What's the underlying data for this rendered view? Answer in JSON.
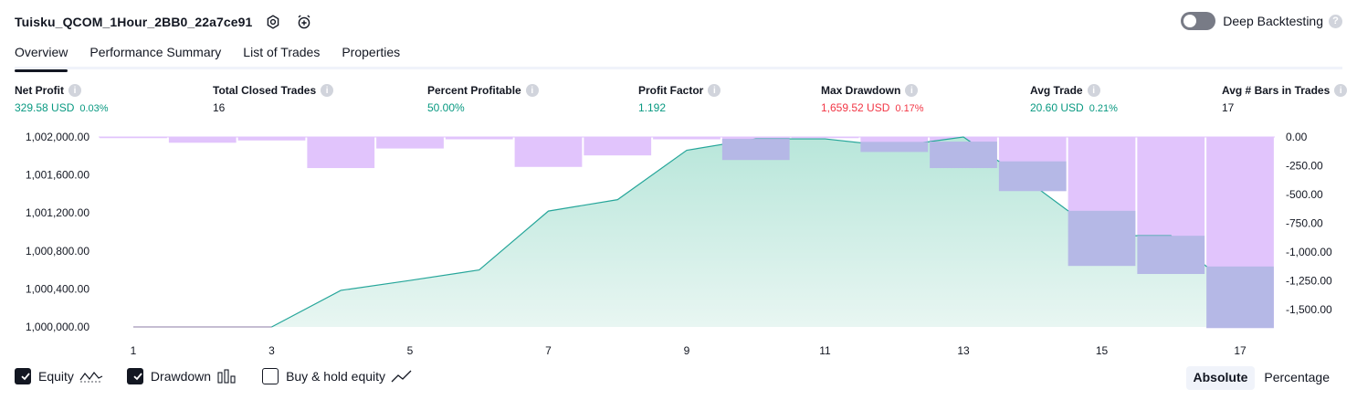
{
  "header": {
    "strategy_name": "Tuisku_QCOM_1Hour_2BB0_22a7ce91",
    "deep_backtesting_label": "Deep Backtesting",
    "deep_backtesting_enabled": false
  },
  "tabs": [
    {
      "label": "Overview",
      "active": true
    },
    {
      "label": "Performance Summary",
      "active": false
    },
    {
      "label": "List of Trades",
      "active": false
    },
    {
      "label": "Properties",
      "active": false
    }
  ],
  "metrics": [
    {
      "label": "Net Profit",
      "value": "329.58 USD",
      "pct": "0.03%",
      "tone": "pos"
    },
    {
      "label": "Total Closed Trades",
      "value": "16",
      "pct": "",
      "tone": "neu"
    },
    {
      "label": "Percent Profitable",
      "value": "50.00%",
      "pct": "",
      "tone": "pos"
    },
    {
      "label": "Profit Factor",
      "value": "1.192",
      "pct": "",
      "tone": "pos"
    },
    {
      "label": "Max Drawdown",
      "value": "1,659.52 USD",
      "pct": "0.17%",
      "tone": "neg"
    },
    {
      "label": "Avg Trade",
      "value": "20.60 USD",
      "pct": "0.21%",
      "tone": "pos"
    },
    {
      "label": "Avg # Bars in Trades",
      "value": "17",
      "pct": "",
      "tone": "neu"
    }
  ],
  "chart_data": {
    "type": "line",
    "x_ticks": [
      "1",
      "3",
      "5",
      "7",
      "9",
      "11",
      "13",
      "15",
      "17"
    ],
    "y_left_ticks": [
      "1,002,000.00",
      "1,001,600.00",
      "1,001,200.00",
      "1,000,800.00",
      "1,000,400.00",
      "1,000,000.00"
    ],
    "y_right_ticks": [
      "0.00",
      "-250.00",
      "-500.00",
      "-750.00",
      "-1,000.00",
      "-1,250.00",
      "-1,500.00"
    ],
    "ylim_left": [
      1000000,
      1002000
    ],
    "ylim_right": [
      -1650,
      0
    ],
    "xlim": [
      1,
      17
    ],
    "series": [
      {
        "name": "Equity",
        "type": "area",
        "axis": "left",
        "x": [
          1,
          2,
          3,
          4,
          5,
          6,
          7,
          8,
          9,
          10,
          11,
          12,
          13,
          14,
          15,
          16,
          17
        ],
        "values": [
          1000000,
          1000000,
          1000000,
          1000385,
          1000490,
          1000600,
          1001220,
          1001340,
          1001860,
          1001980,
          1001980,
          1001900,
          1002000,
          1001500,
          1000960,
          1000960,
          1000330
        ]
      },
      {
        "name": "Drawdown",
        "type": "bar",
        "axis": "right",
        "x": [
          1,
          2,
          3,
          4,
          5,
          6,
          7,
          8,
          9,
          10,
          11,
          12,
          13,
          14,
          15,
          16,
          17
        ],
        "values": [
          -10,
          -50,
          -30,
          -270,
          -100,
          -20,
          -260,
          -160,
          -20,
          -200,
          -10,
          -130,
          -270,
          -470,
          -1120,
          -1190,
          -1659.52
        ]
      }
    ],
    "colors": {
      "equity_line": "#26a69a",
      "equity_fill_top": "#b8e6da",
      "equity_fill_bottom": "#e8f6f2",
      "drawdown_bar": "#e1c4fc",
      "overlap_bar": "#b5b8e6",
      "baseline": "#b2a7c4"
    }
  },
  "legend": [
    {
      "label": "Equity",
      "checked": true,
      "icon": "equity-line-icon"
    },
    {
      "label": "Drawdown",
      "checked": true,
      "icon": "drawdown-bars-icon"
    },
    {
      "label": "Buy & hold equity",
      "checked": false,
      "icon": "buyhold-line-icon"
    }
  ],
  "modes": [
    {
      "label": "Absolute",
      "active": true
    },
    {
      "label": "Percentage",
      "active": false
    }
  ]
}
